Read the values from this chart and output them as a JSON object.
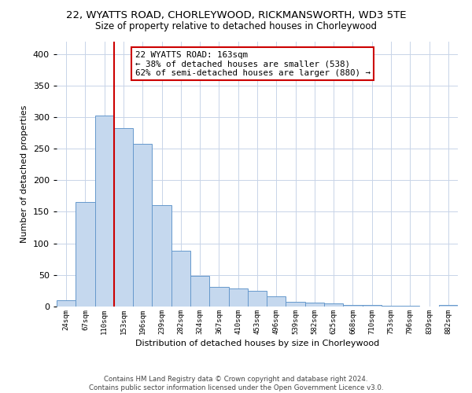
{
  "title_line1": "22, WYATTS ROAD, CHORLEYWOOD, RICKMANSWORTH, WD3 5TE",
  "title_line2": "Size of property relative to detached houses in Chorleywood",
  "xlabel": "Distribution of detached houses by size in Chorleywood",
  "ylabel": "Number of detached properties",
  "bin_labels": [
    "24sqm",
    "67sqm",
    "110sqm",
    "153sqm",
    "196sqm",
    "239sqm",
    "282sqm",
    "324sqm",
    "367sqm",
    "410sqm",
    "453sqm",
    "496sqm",
    "539sqm",
    "582sqm",
    "625sqm",
    "668sqm",
    "710sqm",
    "753sqm",
    "796sqm",
    "839sqm",
    "882sqm"
  ],
  "bar_heights": [
    10,
    165,
    303,
    283,
    258,
    160,
    88,
    48,
    31,
    29,
    25,
    16,
    8,
    6,
    5,
    3,
    3,
    1,
    1,
    0,
    2
  ],
  "bar_color": "#c5d8ee",
  "bar_edge_color": "#6699cc",
  "vline_color": "#cc0000",
  "annotation_title": "22 WYATTS ROAD: 163sqm",
  "annotation_line1": "← 38% of detached houses are smaller (538)",
  "annotation_line2": "62% of semi-detached houses are larger (880) →",
  "annotation_box_edgecolor": "#cc0000",
  "annotation_box_fill": "#ffffff",
  "ylim": [
    0,
    420
  ],
  "yticks": [
    0,
    50,
    100,
    150,
    200,
    250,
    300,
    350,
    400
  ],
  "footer_line1": "Contains HM Land Registry data © Crown copyright and database right 2024.",
  "footer_line2": "Contains public sector information licensed under the Open Government Licence v3.0.",
  "background_color": "#ffffff",
  "grid_color": "#c8d4e8"
}
